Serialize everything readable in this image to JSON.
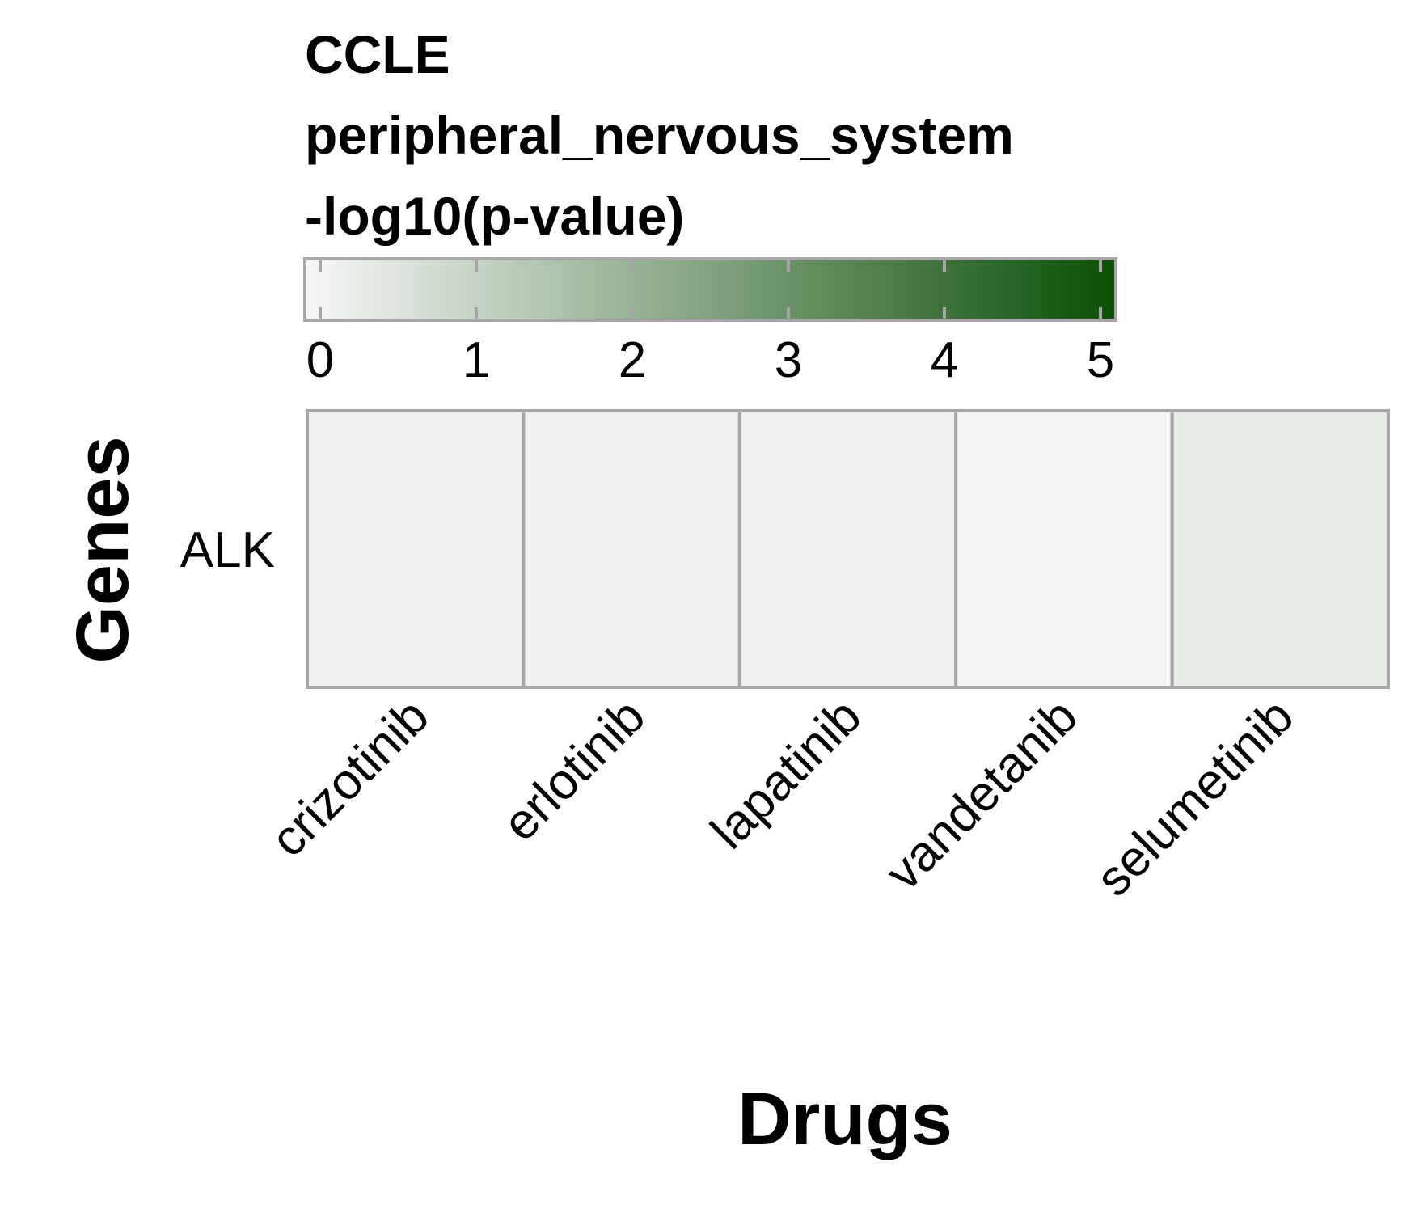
{
  "chart_data": {
    "type": "heatmap",
    "title_lines": [
      "CCLE",
      "peripheral_nervous_system",
      "-log10(p-value)"
    ],
    "xlabel": "Drugs",
    "ylabel": "Genes",
    "rows": [
      "ALK"
    ],
    "columns": [
      "crizotinib",
      "erlotinib",
      "lapatinib",
      "vandetanib",
      "selumetinib"
    ],
    "values": [
      [
        0.18,
        0.15,
        0.15,
        0.07,
        0.35
      ]
    ],
    "colorbar": {
      "min": 0,
      "max": 5,
      "ticks": [
        "0",
        "1",
        "2",
        "3",
        "4",
        "5"
      ],
      "color_low": "#f7f7f7",
      "color_high": "#0b4f06"
    },
    "border_color": "#a6a6a6"
  }
}
